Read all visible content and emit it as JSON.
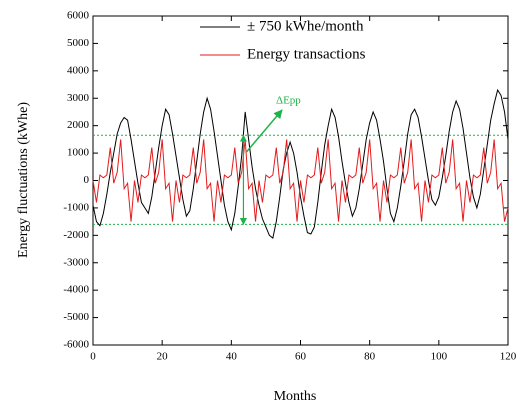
{
  "chart_data": {
    "type": "line",
    "xlabel": "Months",
    "ylabel": "Energy fluctuations (kWhe)",
    "x": [
      0,
      1,
      2,
      3,
      4,
      5,
      6,
      7,
      8,
      9,
      10,
      11,
      12,
      13,
      14,
      15,
      16,
      17,
      18,
      19,
      20,
      21,
      22,
      23,
      24,
      25,
      26,
      27,
      28,
      29,
      30,
      31,
      32,
      33,
      34,
      35,
      36,
      37,
      38,
      39,
      40,
      41,
      42,
      43,
      44,
      45,
      46,
      47,
      48,
      49,
      50,
      51,
      52,
      53,
      54,
      55,
      56,
      57,
      58,
      59,
      60,
      61,
      62,
      63,
      64,
      65,
      66,
      67,
      68,
      69,
      70,
      71,
      72,
      73,
      74,
      75,
      76,
      77,
      78,
      79,
      80,
      81,
      82,
      83,
      84,
      85,
      86,
      87,
      88,
      89,
      90,
      91,
      92,
      93,
      94,
      95,
      96,
      97,
      98,
      99,
      100,
      101,
      102,
      103,
      104,
      105,
      106,
      107,
      108,
      109,
      110,
      111,
      112,
      113,
      114,
      115,
      116,
      117,
      118,
      119,
      120
    ],
    "series": [
      {
        "name": "± 750 kWhe/month",
        "color": "#000000",
        "values": [
          -900,
          -1500,
          -1650,
          -1200,
          -500,
          300,
          1000,
          1700,
          2100,
          2300,
          2200,
          1500,
          700,
          -100,
          -800,
          -1000,
          -1200,
          -600,
          300,
          1200,
          2000,
          2600,
          2400,
          1700,
          900,
          100,
          -700,
          -1300,
          -1100,
          -300,
          700,
          1700,
          2500,
          3000,
          2600,
          1800,
          900,
          0,
          -900,
          -1500,
          -1800,
          -1200,
          -200,
          900,
          2500,
          1500,
          500,
          -300,
          -900,
          -1400,
          -1700,
          -2000,
          -2100,
          -1500,
          -600,
          400,
          1000,
          1400,
          1000,
          300,
          -600,
          -1300,
          -1900,
          -1950,
          -1700,
          -800,
          300,
          1300,
          2000,
          2600,
          2300,
          1600,
          700,
          -100,
          -800,
          -1300,
          -1000,
          -300,
          600,
          1500,
          2100,
          2500,
          2200,
          1500,
          700,
          -300,
          -1200,
          -1500,
          -1000,
          -200,
          700,
          1700,
          2400,
          2600,
          2300,
          1600,
          800,
          0,
          -700,
          -900,
          -600,
          100,
          900,
          1800,
          2500,
          2900,
          2600,
          1900,
          1000,
          100,
          -600,
          -1000,
          -500,
          400,
          1300,
          2200,
          2800,
          3300,
          3100,
          2500,
          1500
        ]
      },
      {
        "name": "Energy transactions",
        "color": "#e41a1c",
        "values": [
          0,
          -800,
          200,
          100,
          200,
          1200,
          -100,
          300,
          1500,
          -300,
          -100,
          -1500,
          0,
          -800,
          200,
          100,
          200,
          1200,
          -100,
          300,
          1500,
          -300,
          -100,
          -1500,
          0,
          -800,
          200,
          100,
          200,
          1200,
          -100,
          300,
          1500,
          -300,
          -100,
          -1500,
          0,
          -800,
          200,
          100,
          200,
          1200,
          -100,
          300,
          1500,
          -300,
          -100,
          -1500,
          0,
          -800,
          200,
          100,
          200,
          1200,
          -100,
          300,
          1500,
          -300,
          -100,
          -1500,
          0,
          -800,
          200,
          100,
          200,
          1200,
          -100,
          300,
          1500,
          -300,
          -100,
          -1500,
          0,
          -800,
          200,
          100,
          200,
          1200,
          -100,
          300,
          1500,
          -300,
          -100,
          -1500,
          0,
          -800,
          200,
          100,
          200,
          1200,
          -100,
          300,
          1500,
          -300,
          -100,
          -1500,
          0,
          -800,
          200,
          100,
          200,
          1200,
          -100,
          300,
          1500,
          -300,
          -100,
          -1500,
          0,
          -800,
          200,
          100,
          200,
          1200,
          -100,
          300,
          1500,
          -300,
          -100,
          -1500,
          -1000
        ]
      }
    ],
    "annotation": "ΔEpp",
    "annotation_color": "#1fb24a",
    "reference_lines": [
      1650,
      -1600
    ],
    "xlim": [
      0,
      120
    ],
    "xticks": [
      0,
      20,
      40,
      60,
      80,
      100,
      120
    ],
    "ylim": [
      -6000,
      6000
    ],
    "yticks": [
      -6000,
      -5000,
      -4000,
      -3000,
      -2000,
      -1000,
      0,
      1000,
      2000,
      3000,
      4000,
      5000,
      6000
    ]
  }
}
